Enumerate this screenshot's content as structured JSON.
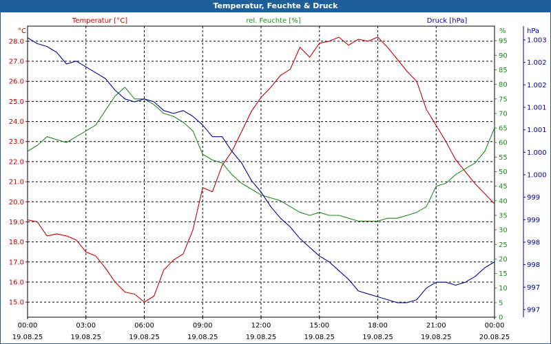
{
  "window": {
    "title": "Temperatur, Feuchte & Druck"
  },
  "chart_data": {
    "type": "line",
    "title": "Temperatur, Feuchte & Druck",
    "x_labels": [
      {
        "time": "00:00",
        "date": "19.08.25"
      },
      {
        "time": "03:00",
        "date": "19.08.25"
      },
      {
        "time": "06:00",
        "date": "19.08.25"
      },
      {
        "time": "09:00",
        "date": "19.08.25"
      },
      {
        "time": "12:00",
        "date": "19.08.25"
      },
      {
        "time": "15:00",
        "date": "19.08.25"
      },
      {
        "time": "18:00",
        "date": "19.08.25"
      },
      {
        "time": "21:00",
        "date": "19.08.25"
      },
      {
        "time": "00:00",
        "date": "20.08.25"
      }
    ],
    "x_range_hours": [
      0,
      24
    ],
    "grid": true,
    "axes": {
      "temperature": {
        "label": "Temperatur [°C]",
        "unit": "°C",
        "color": "#c00000",
        "range": [
          14.25,
          28.75
        ],
        "ticks": [
          "15.0",
          "16.0",
          "17.0",
          "18.0",
          "19.0",
          "20.0",
          "21.0",
          "22.0",
          "23.0",
          "24.0",
          "25.0",
          "26.0",
          "27.0",
          "28.0"
        ]
      },
      "humidity": {
        "label": "rel. Feuchte [%]",
        "unit": "%",
        "color": "#1a8a1a",
        "range": [
          0,
          100
        ],
        "ticks": [
          "0",
          "5",
          "10",
          "15",
          "20",
          "25",
          "30",
          "35",
          "40",
          "45",
          "50",
          "55",
          "60",
          "65",
          "70",
          "75",
          "80",
          "85",
          "90",
          "95"
        ]
      },
      "pressure": {
        "label": "Druck [hPa]",
        "unit": "hPa",
        "color": "#000099",
        "ticks": [
          "997",
          "997",
          "998",
          "998",
          "999",
          "999",
          "1.000",
          "1.000",
          "1.001",
          "1.001",
          "1.002",
          "1.002",
          "1.003"
        ]
      }
    },
    "series": [
      {
        "name": "Temperatur",
        "axis": "temperature",
        "color": "#c00000",
        "x": [
          0,
          0.5,
          1,
          1.5,
          2,
          2.5,
          3,
          3.5,
          4,
          4.5,
          5,
          5.5,
          6,
          6.5,
          7,
          7.5,
          8,
          8.5,
          9,
          9.5,
          10,
          10.5,
          11,
          11.5,
          12,
          12.5,
          13,
          13.5,
          14,
          14.5,
          15,
          15.5,
          16,
          16.5,
          17,
          17.5,
          18,
          18.5,
          19,
          19.5,
          20,
          20.5,
          21,
          21.5,
          22,
          22.5,
          23,
          23.5,
          24
        ],
        "values": [
          19.1,
          19.0,
          18.3,
          18.4,
          18.3,
          18.1,
          17.5,
          17.3,
          16.7,
          16.0,
          15.5,
          15.4,
          15.0,
          15.3,
          16.6,
          17.1,
          17.4,
          18.6,
          20.7,
          20.5,
          21.8,
          22.5,
          23.5,
          24.5,
          25.2,
          25.7,
          26.3,
          26.6,
          27.7,
          27.2,
          27.9,
          28.0,
          28.2,
          27.8,
          28.1,
          28.0,
          28.2,
          27.7,
          27.1,
          26.5,
          26.0,
          24.6,
          23.8,
          23.0,
          22.1,
          21.5,
          20.9,
          20.4,
          19.9
        ]
      },
      {
        "name": "rel. Feuchte",
        "axis": "humidity",
        "color": "#1a8a1a",
        "x": [
          0,
          0.5,
          1,
          1.5,
          2,
          2.5,
          3,
          3.5,
          4,
          4.5,
          5,
          5.5,
          6,
          6.5,
          7,
          7.5,
          8,
          8.5,
          9,
          9.5,
          10,
          10.5,
          11,
          11.5,
          12,
          12.5,
          13,
          13.5,
          14,
          14.5,
          15,
          15.5,
          16,
          16.5,
          17,
          17.5,
          18,
          18.5,
          19,
          19.5,
          20,
          20.5,
          21,
          21.5,
          22,
          22.5,
          23,
          23.5,
          24
        ],
        "values": [
          57,
          59,
          62,
          61,
          60,
          62,
          64,
          66,
          71,
          76,
          79,
          75,
          75,
          73,
          70,
          69,
          67,
          64,
          56,
          54,
          53,
          49,
          46,
          44,
          42,
          41,
          40,
          38,
          36,
          35,
          36,
          35,
          35,
          34,
          33,
          33,
          33,
          34,
          34,
          35,
          36,
          38,
          45,
          46,
          49,
          51,
          53,
          57,
          65
        ]
      },
      {
        "name": "Druck",
        "axis": "pressure",
        "color": "#000099",
        "x": [
          0,
          0.5,
          1,
          1.5,
          2,
          2.5,
          3,
          3.5,
          4,
          4.5,
          5,
          5.5,
          6,
          6.5,
          7,
          7.5,
          8,
          8.5,
          9,
          9.5,
          10,
          10.5,
          11,
          11.5,
          12,
          12.5,
          13,
          13.5,
          14,
          14.5,
          15,
          15.5,
          16,
          16.5,
          17,
          17.5,
          18,
          18.5,
          19,
          19.5,
          20,
          20.5,
          21,
          21.5,
          22,
          22.5,
          23,
          23.5,
          24
        ],
        "values": [
          96,
          94,
          93,
          91,
          87,
          88,
          86,
          84,
          82,
          78,
          75,
          74,
          75,
          74,
          71,
          70,
          71,
          69,
          66,
          62,
          62,
          57,
          53,
          47,
          43,
          38,
          34,
          31,
          27,
          24,
          21,
          19,
          16,
          13,
          9,
          8,
          7,
          6,
          5,
          5,
          6,
          10,
          12,
          12,
          11,
          12,
          14,
          17,
          19
        ]
      }
    ]
  }
}
